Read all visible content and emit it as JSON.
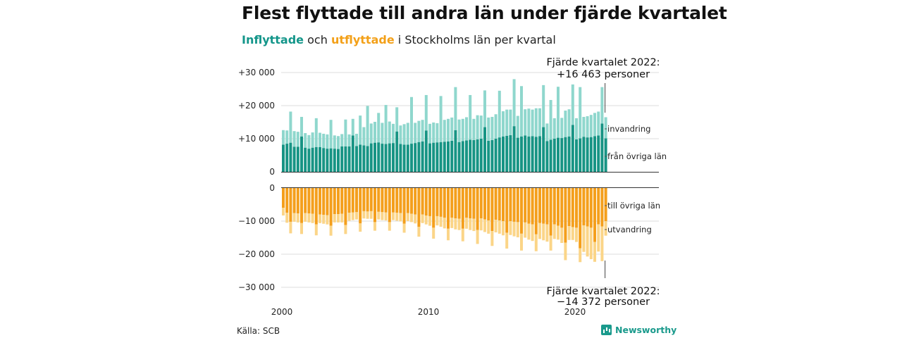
{
  "title": "Flest flyttade till andra län under fjärde kvartalet",
  "subtitle": {
    "in_label": "Inflyttade",
    "and": "och",
    "out_label": "utflyttade",
    "rest": "i Stockholms län per kvartal"
  },
  "source": "Källa: SCB",
  "brand": "Newsworthy",
  "colors": {
    "in_light": "#8fd7cd",
    "in_dark": "#179484",
    "out_light": "#fbd588",
    "out_dark": "#f49f1c",
    "axis": "#333333",
    "grid": "#dddddd"
  },
  "chart_data": {
    "type": "bar",
    "stacked": true,
    "grid": true,
    "x_labels": [
      "2000",
      "2010",
      "2020"
    ],
    "quarter_start": "2000 Q1",
    "upper_panel": {
      "ylim": [
        0,
        30000
      ],
      "y_ticks": [
        "+30 000",
        "+20 000",
        "+10 000",
        "0"
      ],
      "series": [
        {
          "name": "från övriga län",
          "values": [
            8200,
            8500,
            8800,
            7600,
            7600,
            10700,
            7300,
            7000,
            7300,
            7500,
            7500,
            7200,
            7000,
            7100,
            7000,
            6900,
            7700,
            7700,
            7700,
            11000,
            7800,
            8200,
            8000,
            7800,
            8600,
            8800,
            8900,
            8500,
            8400,
            8600,
            8700,
            12200,
            8400,
            8200,
            8200,
            8500,
            8700,
            9000,
            9200,
            12500,
            8600,
            8800,
            8900,
            9000,
            9100,
            9200,
            9400,
            12600,
            9000,
            9300,
            9500,
            9700,
            9600,
            9800,
            10000,
            13500,
            9400,
            9600,
            10000,
            10400,
            10700,
            10900,
            11100,
            13800,
            10300,
            10700,
            11000,
            10700,
            10800,
            10600,
            10800,
            13500,
            9300,
            9700,
            10000,
            10300,
            10200,
            10500,
            10700,
            14200,
            9800,
            10100,
            10600,
            10400,
            10500,
            10800,
            11000,
            14600,
            10100
          ]
        },
        {
          "name": "invandring",
          "values": [
            4400,
            4000,
            9400,
            4700,
            4500,
            5900,
            4400,
            4100,
            4600,
            8700,
            4300,
            4300,
            4300,
            8600,
            4000,
            3900,
            3700,
            8100,
            3600,
            5000,
            3700,
            8800,
            5500,
            12100,
            6000,
            6300,
            8900,
            6300,
            11800,
            6600,
            5800,
            7300,
            5600,
            6200,
            6600,
            14100,
            6100,
            6400,
            6500,
            10700,
            5900,
            6100,
            5800,
            13900,
            6600,
            6800,
            7000,
            13000,
            6800,
            6700,
            7000,
            13500,
            6400,
            7300,
            7000,
            11100,
            7000,
            7000,
            7400,
            14100,
            7600,
            7900,
            7700,
            14200,
            6600,
            15200,
            7900,
            8400,
            8000,
            8600,
            8400,
            12700,
            5300,
            12000,
            6200,
            15400,
            6100,
            8000,
            8200,
            12200,
            6400,
            15500,
            6000,
            6400,
            6700,
            7000,
            7200,
            11000,
            6400
          ]
        }
      ]
    },
    "lower_panel": {
      "ylim": [
        -30000,
        0
      ],
      "y_ticks": [
        "0",
        "−10 000",
        "−20 000",
        "−30 000"
      ],
      "series": [
        {
          "name": "till övriga län",
          "values": [
            -6000,
            -7500,
            -10200,
            -7600,
            -7700,
            -10600,
            -7600,
            -7700,
            -7800,
            -11000,
            -8000,
            -8100,
            -8200,
            -11400,
            -7900,
            -7900,
            -7800,
            -11200,
            -7500,
            -7400,
            -7300,
            -10700,
            -7000,
            -7100,
            -7000,
            -10300,
            -7200,
            -7300,
            -7400,
            -10300,
            -7400,
            -7500,
            -7600,
            -10800,
            -7600,
            -7800,
            -8000,
            -11700,
            -8000,
            -8300,
            -8500,
            -12000,
            -8500,
            -8700,
            -9000,
            -12300,
            -9000,
            -9200,
            -9300,
            -12300,
            -9000,
            -9200,
            -9300,
            -12700,
            -9200,
            -9500,
            -9800,
            -13000,
            -9600,
            -9800,
            -10000,
            -13500,
            -10000,
            -10200,
            -10300,
            -13800,
            -10400,
            -10800,
            -11000,
            -14000,
            -10600,
            -10800,
            -11000,
            -14400,
            -11000,
            -11400,
            -12000,
            -16500,
            -11500,
            -11800,
            -12000,
            -18200,
            -11300,
            -11600,
            -12000,
            -16300,
            -11000,
            -11600,
            -10000
          ]
        },
        {
          "name": "utvandring",
          "values": [
            -2300,
            -3000,
            -3500,
            -2600,
            -2700,
            -3300,
            -2600,
            -2700,
            -2800,
            -3300,
            -2600,
            -2700,
            -2800,
            -3000,
            -2500,
            -2500,
            -2600,
            -2700,
            -2400,
            -2300,
            -2200,
            -2500,
            -2200,
            -2200,
            -2300,
            -2600,
            -2300,
            -2400,
            -2400,
            -2600,
            -2300,
            -2400,
            -2500,
            -2700,
            -2400,
            -2500,
            -2700,
            -3000,
            -2600,
            -2700,
            -2900,
            -3300,
            -2800,
            -3000,
            -3200,
            -3500,
            -3100,
            -3300,
            -3400,
            -3800,
            -3300,
            -3500,
            -3700,
            -4200,
            -3600,
            -3800,
            -4000,
            -4500,
            -3800,
            -4000,
            -4300,
            -4800,
            -4200,
            -4400,
            -4600,
            -5100,
            -4600,
            -4800,
            -5000,
            -5100,
            -4800,
            -5000,
            -5200,
            -4500,
            -4400,
            -4200,
            -4600,
            -5300,
            -4200,
            -3900,
            -4300,
            -4200,
            -8000,
            -9100,
            -9500,
            -6000,
            -8200,
            -10500,
            -4400
          ]
        }
      ]
    },
    "annotations": [
      {
        "text": [
          "Fjärde kvartalet 2022:",
          "+16 463 personer"
        ]
      },
      {
        "text": [
          "Fjärde kvartalet 2022:",
          "−14 372 personer"
        ]
      }
    ]
  }
}
